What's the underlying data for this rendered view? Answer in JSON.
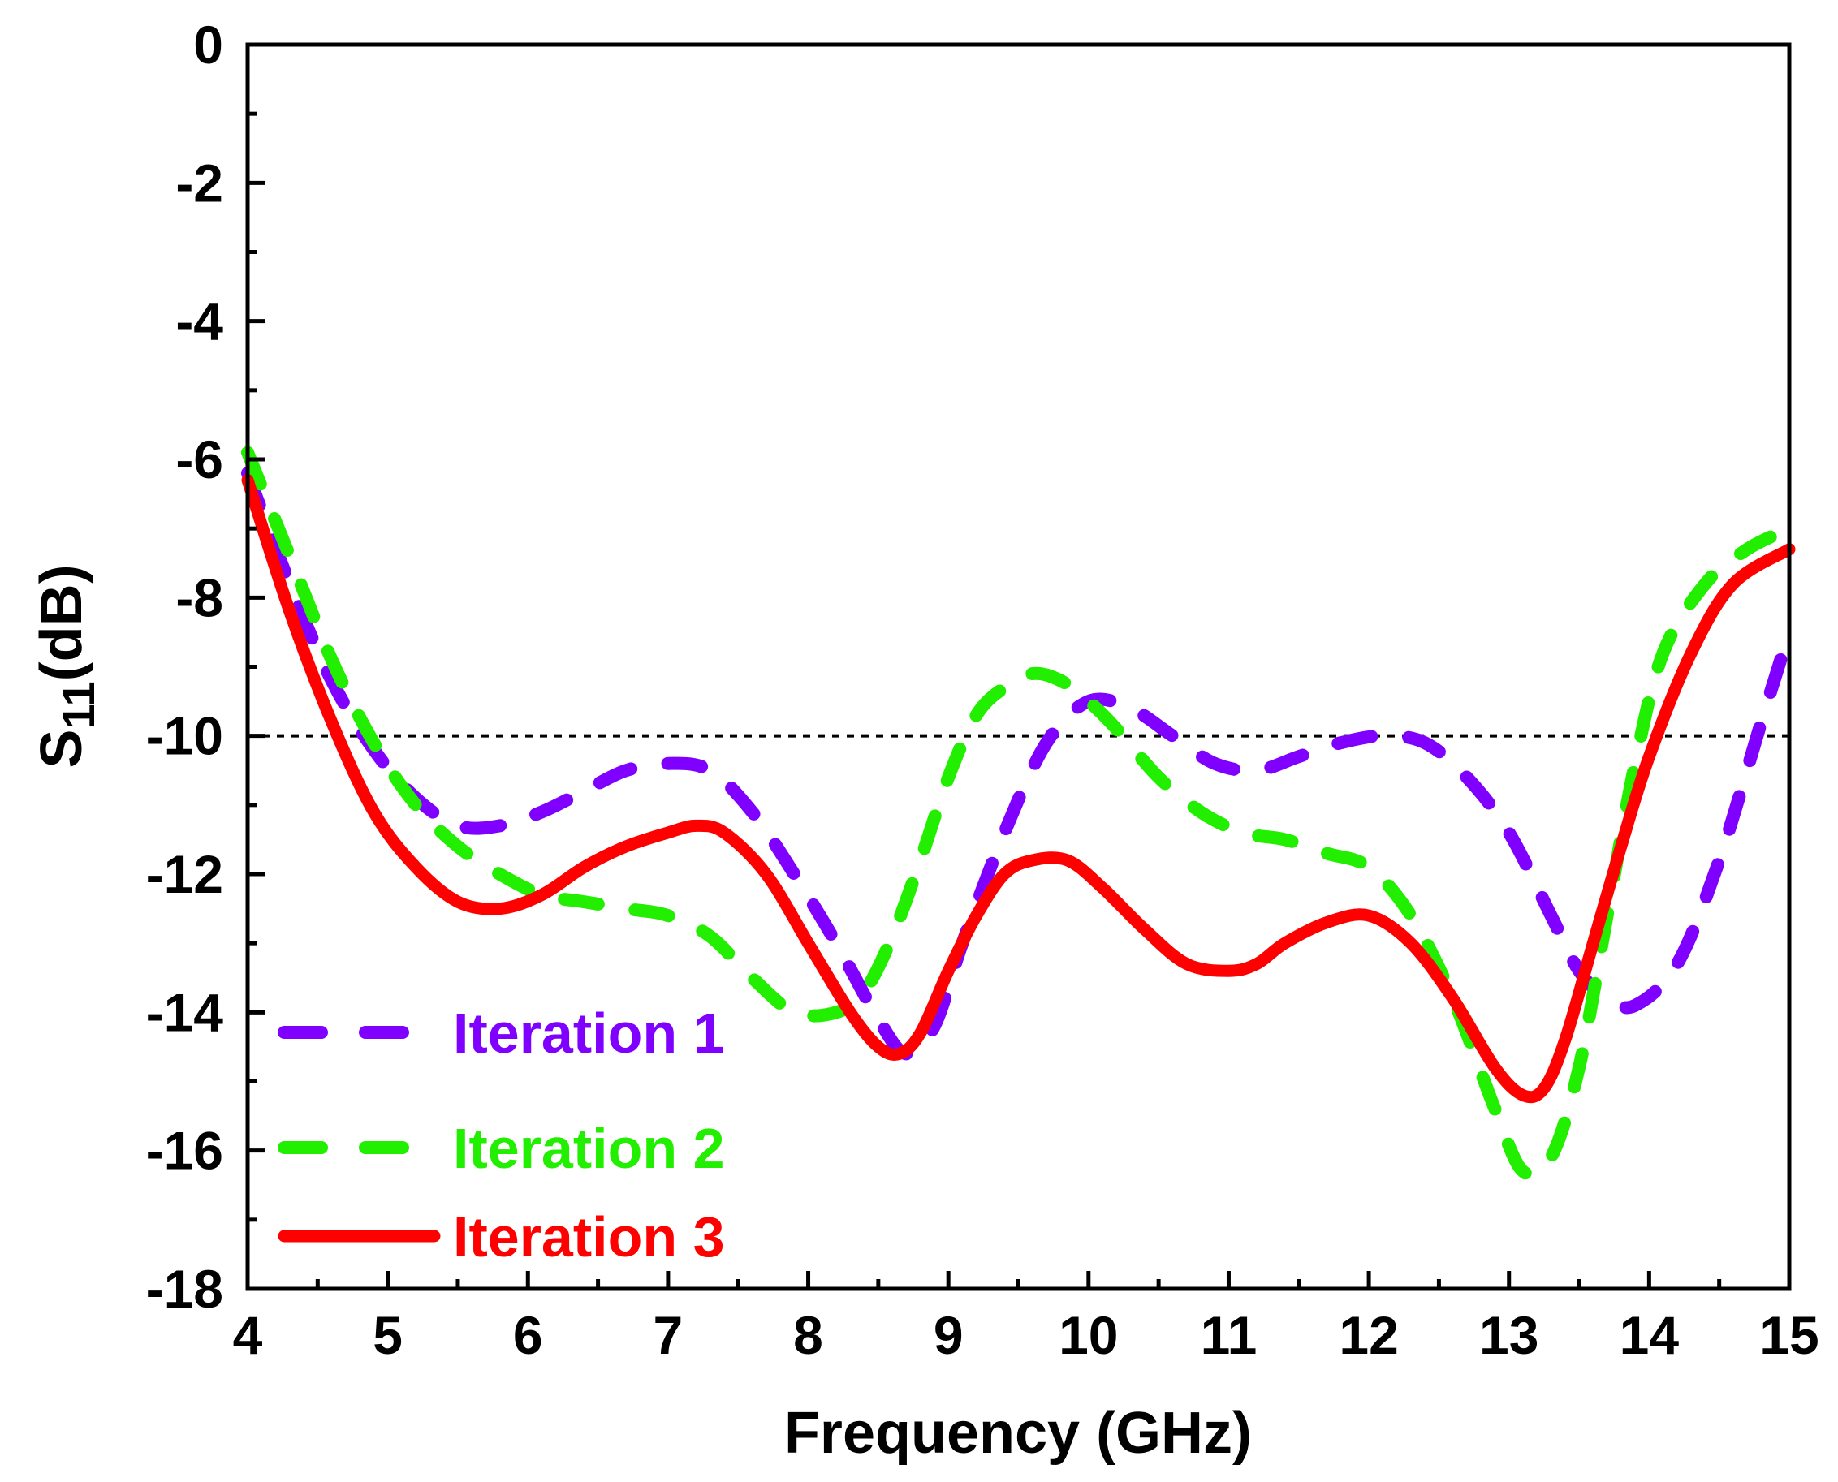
{
  "chart_data": {
    "type": "line",
    "xlabel": "Frequency (GHz)",
    "ylabel": {
      "base": "S",
      "sub": "11",
      "unit": "(dB)"
    },
    "xlim": [
      4,
      15
    ],
    "ylim": [
      -18,
      0
    ],
    "xticks": [
      4,
      5,
      6,
      7,
      8,
      9,
      10,
      11,
      12,
      13,
      14,
      15
    ],
    "yticks": [
      0,
      -2,
      -4,
      -6,
      -8,
      -10,
      -12,
      -14,
      -16,
      -18
    ],
    "reference_line": {
      "y": -10,
      "style": "dotted",
      "color": "#000000"
    },
    "legend_position": "bottom-left",
    "series": [
      {
        "name": "Iteration 1",
        "color": "#8000FF",
        "dash": "dashed",
        "x": [
          4.0,
          4.3,
          4.6,
          4.9,
          5.2,
          5.5,
          5.8,
          6.1,
          6.4,
          6.7,
          7.0,
          7.3,
          7.6,
          7.9,
          8.2,
          8.5,
          8.7,
          8.9,
          9.1,
          9.4,
          9.7,
          10.0,
          10.3,
          10.6,
          10.9,
          11.2,
          11.5,
          11.8,
          12.1,
          12.4,
          12.7,
          13.0,
          13.3,
          13.5,
          13.7,
          13.9,
          14.2,
          14.5,
          14.8,
          15.0
        ],
        "y": [
          -6.2,
          -7.8,
          -9.2,
          -10.2,
          -10.9,
          -11.3,
          -11.3,
          -11.1,
          -10.8,
          -10.5,
          -10.4,
          -10.5,
          -11.1,
          -12.0,
          -13.0,
          -14.1,
          -14.6,
          -14.2,
          -13.0,
          -11.4,
          -10.1,
          -9.5,
          -9.6,
          -10.0,
          -10.4,
          -10.5,
          -10.3,
          -10.1,
          -10.0,
          -10.1,
          -10.6,
          -11.4,
          -12.6,
          -13.4,
          -13.8,
          -13.9,
          -13.3,
          -11.8,
          -9.8,
          -8.5
        ]
      },
      {
        "name": "Iteration 2",
        "color": "#22EE00",
        "dash": "dashed",
        "x": [
          4.0,
          4.3,
          4.6,
          4.9,
          5.2,
          5.5,
          5.8,
          6.1,
          6.4,
          6.7,
          7.0,
          7.3,
          7.6,
          7.9,
          8.2,
          8.4,
          8.6,
          8.8,
          9.0,
          9.2,
          9.4,
          9.6,
          9.8,
          10.0,
          10.2,
          10.5,
          10.8,
          11.1,
          11.4,
          11.7,
          12.0,
          12.3,
          12.6,
          12.9,
          13.1,
          13.3,
          13.5,
          13.7,
          13.9,
          14.1,
          14.4,
          14.7,
          15.0
        ],
        "y": [
          -5.9,
          -7.4,
          -8.9,
          -10.1,
          -11.0,
          -11.6,
          -12.0,
          -12.3,
          -12.4,
          -12.5,
          -12.6,
          -12.9,
          -13.5,
          -14.0,
          -14.0,
          -13.7,
          -12.9,
          -11.8,
          -10.6,
          -9.7,
          -9.3,
          -9.1,
          -9.2,
          -9.5,
          -9.9,
          -10.6,
          -11.1,
          -11.4,
          -11.5,
          -11.7,
          -11.9,
          -12.6,
          -13.8,
          -15.4,
          -16.3,
          -16.1,
          -14.8,
          -12.6,
          -10.4,
          -8.8,
          -7.8,
          -7.3,
          -7.0
        ]
      },
      {
        "name": "Iteration 3",
        "color": "#FF0000",
        "dash": "solid",
        "x": [
          4.0,
          4.3,
          4.6,
          4.9,
          5.2,
          5.5,
          5.8,
          6.1,
          6.4,
          6.7,
          7.0,
          7.2,
          7.4,
          7.7,
          8.0,
          8.3,
          8.5,
          8.65,
          8.8,
          9.0,
          9.2,
          9.4,
          9.6,
          9.85,
          10.1,
          10.4,
          10.7,
          11.0,
          11.2,
          11.4,
          11.7,
          12.0,
          12.3,
          12.6,
          12.9,
          13.1,
          13.25,
          13.4,
          13.6,
          13.8,
          14.0,
          14.3,
          14.6,
          15.0
        ],
        "y": [
          -6.3,
          -8.2,
          -9.8,
          -11.1,
          -11.9,
          -12.4,
          -12.5,
          -12.3,
          -11.9,
          -11.6,
          -11.4,
          -11.3,
          -11.4,
          -12.0,
          -13.0,
          -14.0,
          -14.5,
          -14.6,
          -14.3,
          -13.4,
          -12.6,
          -12.0,
          -11.8,
          -11.8,
          -12.2,
          -12.8,
          -13.3,
          -13.4,
          -13.3,
          -13.0,
          -12.7,
          -12.6,
          -13.0,
          -13.8,
          -14.8,
          -15.2,
          -15.1,
          -14.4,
          -13.0,
          -11.6,
          -10.3,
          -8.8,
          -7.8,
          -7.3
        ]
      }
    ]
  }
}
